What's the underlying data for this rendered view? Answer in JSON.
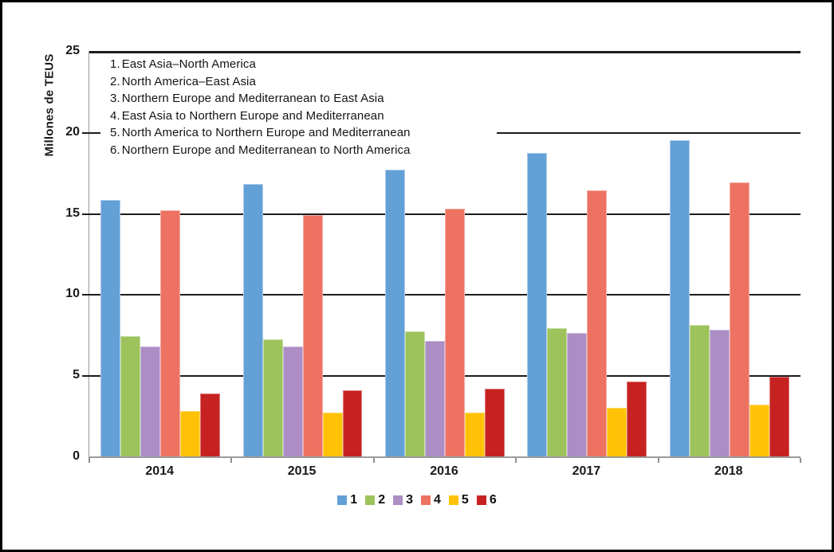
{
  "chart_data": {
    "type": "bar",
    "title": "",
    "ylabel": "Millones de TEUS",
    "xlabel": "",
    "ylim": [
      0,
      25
    ],
    "yticks": [
      0,
      5,
      10,
      15,
      20,
      25
    ],
    "grid": "horizontal",
    "gridline_color": "#1c1c1c",
    "axis_color": "#9b9b9b",
    "legend_position": "bottom",
    "annotation_note": "numbered route list drawn inside plot, top-left, white background partially covering the 20-gridline",
    "categories": [
      "2014",
      "2015",
      "2016",
      "2017",
      "2018"
    ],
    "series": [
      {
        "name": "1",
        "label": "East Asia–North America",
        "color": "#63A0D6",
        "border": "#AECBEA",
        "values": [
          15.8,
          16.8,
          17.7,
          18.7,
          19.5
        ]
      },
      {
        "name": "2",
        "label": "North America–East Asia",
        "color": "#9CC35C",
        "border": "#C6DE9F",
        "values": [
          7.4,
          7.2,
          7.7,
          7.9,
          8.1
        ]
      },
      {
        "name": "3",
        "label": "Northern Europe and Mediterranean to East Asia",
        "color": "#AC8DC4",
        "border": "#CDBBDF",
        "values": [
          6.8,
          6.8,
          7.1,
          7.6,
          7.8
        ]
      },
      {
        "name": "4",
        "label": "East Asia to Northern Europe and Mediterranean",
        "color": "#ED7262",
        "border": "#F5ACA3",
        "values": [
          15.2,
          14.9,
          15.3,
          16.4,
          16.9
        ]
      },
      {
        "name": "5",
        "label": "North America to Northern Europe and Mediterranean",
        "color": "#FFC206",
        "border": "#FFD968",
        "values": [
          2.8,
          2.7,
          2.7,
          3.0,
          3.2
        ]
      },
      {
        "name": "6",
        "label": "Northern Europe and Mediterranean to North America",
        "color": "#C72222",
        "border": "#DC7A7A",
        "values": [
          3.9,
          4.1,
          4.2,
          4.6,
          4.9
        ]
      }
    ]
  }
}
